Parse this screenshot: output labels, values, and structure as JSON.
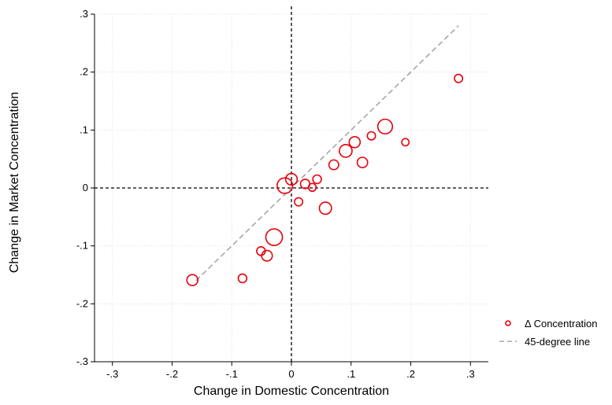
{
  "chart_data": {
    "type": "scatter",
    "xlabel": "Change in Domestic Concentration",
    "ylabel": "Change in Market Concentration",
    "xlim": [
      -0.33,
      0.33
    ],
    "ylim": [
      -0.3,
      0.3
    ],
    "x_ticks": [
      -0.3,
      -0.2,
      -0.1,
      0,
      0.1,
      0.2,
      0.3
    ],
    "x_tick_labels": [
      "-.3",
      "-.2",
      "-.1",
      "0",
      ".1",
      ".2",
      ".3"
    ],
    "y_ticks": [
      -0.3,
      -0.2,
      -0.1,
      0,
      0.1,
      0.2,
      0.3
    ],
    "y_tick_labels": [
      "-.3",
      "-.2",
      "-.1",
      "0",
      ".1",
      ".2",
      ".3"
    ],
    "grid": true,
    "reference_lines": {
      "x": 0,
      "y": 0,
      "style": "dashed",
      "color": "#000000"
    },
    "legend": {
      "placement": "right",
      "entries": [
        "Δ Concentration",
        "45-degree line"
      ]
    },
    "series": [
      {
        "name": "Δ Concentration",
        "kind": "weighted-scatter",
        "color": "#e8000b",
        "points": [
          {
            "x": 0.28,
            "y": 0.189,
            "w": 1.0
          },
          {
            "x": 0.157,
            "y": 0.106,
            "w": 3.2
          },
          {
            "x": 0.191,
            "y": 0.079,
            "w": 0.8
          },
          {
            "x": 0.134,
            "y": 0.09,
            "w": 1.0
          },
          {
            "x": 0.106,
            "y": 0.079,
            "w": 1.8
          },
          {
            "x": 0.091,
            "y": 0.064,
            "w": 2.4
          },
          {
            "x": 0.119,
            "y": 0.044,
            "w": 1.6
          },
          {
            "x": 0.071,
            "y": 0.04,
            "w": 1.4
          },
          {
            "x": 0.043,
            "y": 0.015,
            "w": 1.1
          },
          {
            "x": 0.023,
            "y": 0.007,
            "w": 1.3
          },
          {
            "x": 0.035,
            "y": 0.001,
            "w": 0.9
          },
          {
            "x": 0.0,
            "y": 0.015,
            "w": 2.0
          },
          {
            "x": -0.011,
            "y": 0.004,
            "w": 3.6
          },
          {
            "x": 0.012,
            "y": -0.024,
            "w": 1.0
          },
          {
            "x": 0.057,
            "y": -0.035,
            "w": 2.2
          },
          {
            "x": -0.029,
            "y": -0.085,
            "w": 4.1
          },
          {
            "x": -0.041,
            "y": -0.117,
            "w": 1.7
          },
          {
            "x": -0.051,
            "y": -0.109,
            "w": 1.1
          },
          {
            "x": -0.082,
            "y": -0.156,
            "w": 1.1
          },
          {
            "x": -0.166,
            "y": -0.159,
            "w": 1.8
          }
        ]
      },
      {
        "name": "45-degree line",
        "kind": "line",
        "color": "#a6a6a6",
        "style": "dashed",
        "x": [
          -0.16,
          0.28
        ],
        "y": [
          -0.16,
          0.28
        ]
      }
    ]
  }
}
